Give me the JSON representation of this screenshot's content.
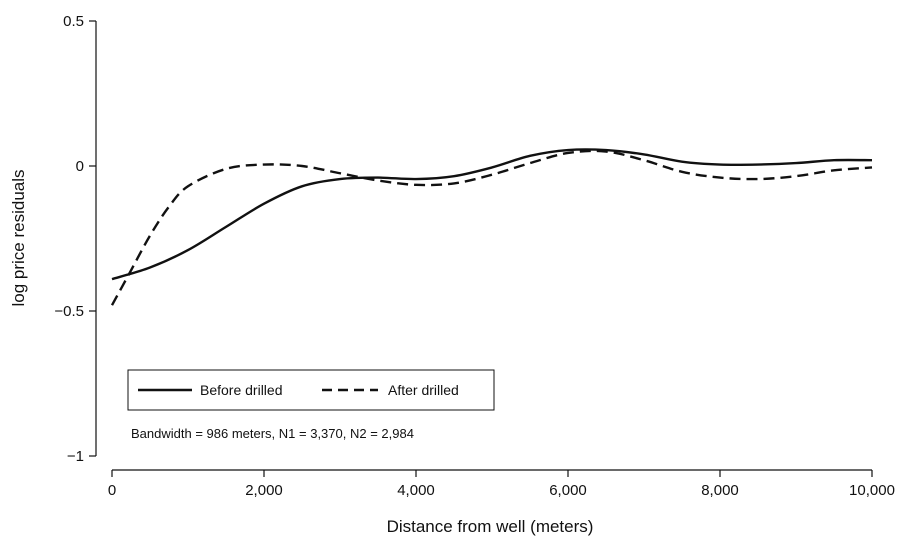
{
  "chart_data": {
    "type": "line",
    "title": "",
    "xlabel": "Distance from well (meters)",
    "ylabel": "log price residuals",
    "xlim": [
      0,
      10000
    ],
    "ylim": [
      -1,
      0.5
    ],
    "x_ticks": [
      0,
      2000,
      4000,
      6000,
      8000,
      10000
    ],
    "x_tick_labels": [
      "0",
      "2,000",
      "4,000",
      "6,000",
      "8,000",
      "10,000"
    ],
    "y_ticks": [
      0.5,
      0,
      -0.5,
      -1
    ],
    "y_tick_labels": [
      "0.5",
      "0",
      "−0.5",
      "−1"
    ],
    "grid": false,
    "legend_position": "bottom-left",
    "annotation": "Bandwidth = 986 meters, N1 = 3,370, N2 = 2,984",
    "series": [
      {
        "name": "Before drilled",
        "line_style": "solid",
        "x": [
          0,
          500,
          1000,
          1500,
          2000,
          2500,
          3000,
          3500,
          4000,
          4500,
          5000,
          5500,
          6000,
          6500,
          7000,
          7500,
          8000,
          8500,
          9000,
          9500,
          10000
        ],
        "y": [
          -0.39,
          -0.35,
          -0.29,
          -0.21,
          -0.13,
          -0.07,
          -0.045,
          -0.04,
          -0.045,
          -0.035,
          -0.005,
          0.035,
          0.055,
          0.055,
          0.04,
          0.015,
          0.005,
          0.005,
          0.01,
          0.02,
          0.02
        ]
      },
      {
        "name": "After drilled",
        "line_style": "dashed",
        "x": [
          0,
          250,
          500,
          750,
          1000,
          1500,
          2000,
          2500,
          3000,
          3500,
          4000,
          4500,
          5000,
          5500,
          6000,
          6500,
          7000,
          7500,
          8000,
          8500,
          9000,
          9500,
          10000
        ],
        "y": [
          -0.48,
          -0.36,
          -0.24,
          -0.14,
          -0.07,
          -0.01,
          0.005,
          0.0,
          -0.025,
          -0.05,
          -0.065,
          -0.06,
          -0.03,
          0.01,
          0.045,
          0.05,
          0.02,
          -0.02,
          -0.04,
          -0.045,
          -0.035,
          -0.015,
          -0.005
        ]
      }
    ]
  }
}
